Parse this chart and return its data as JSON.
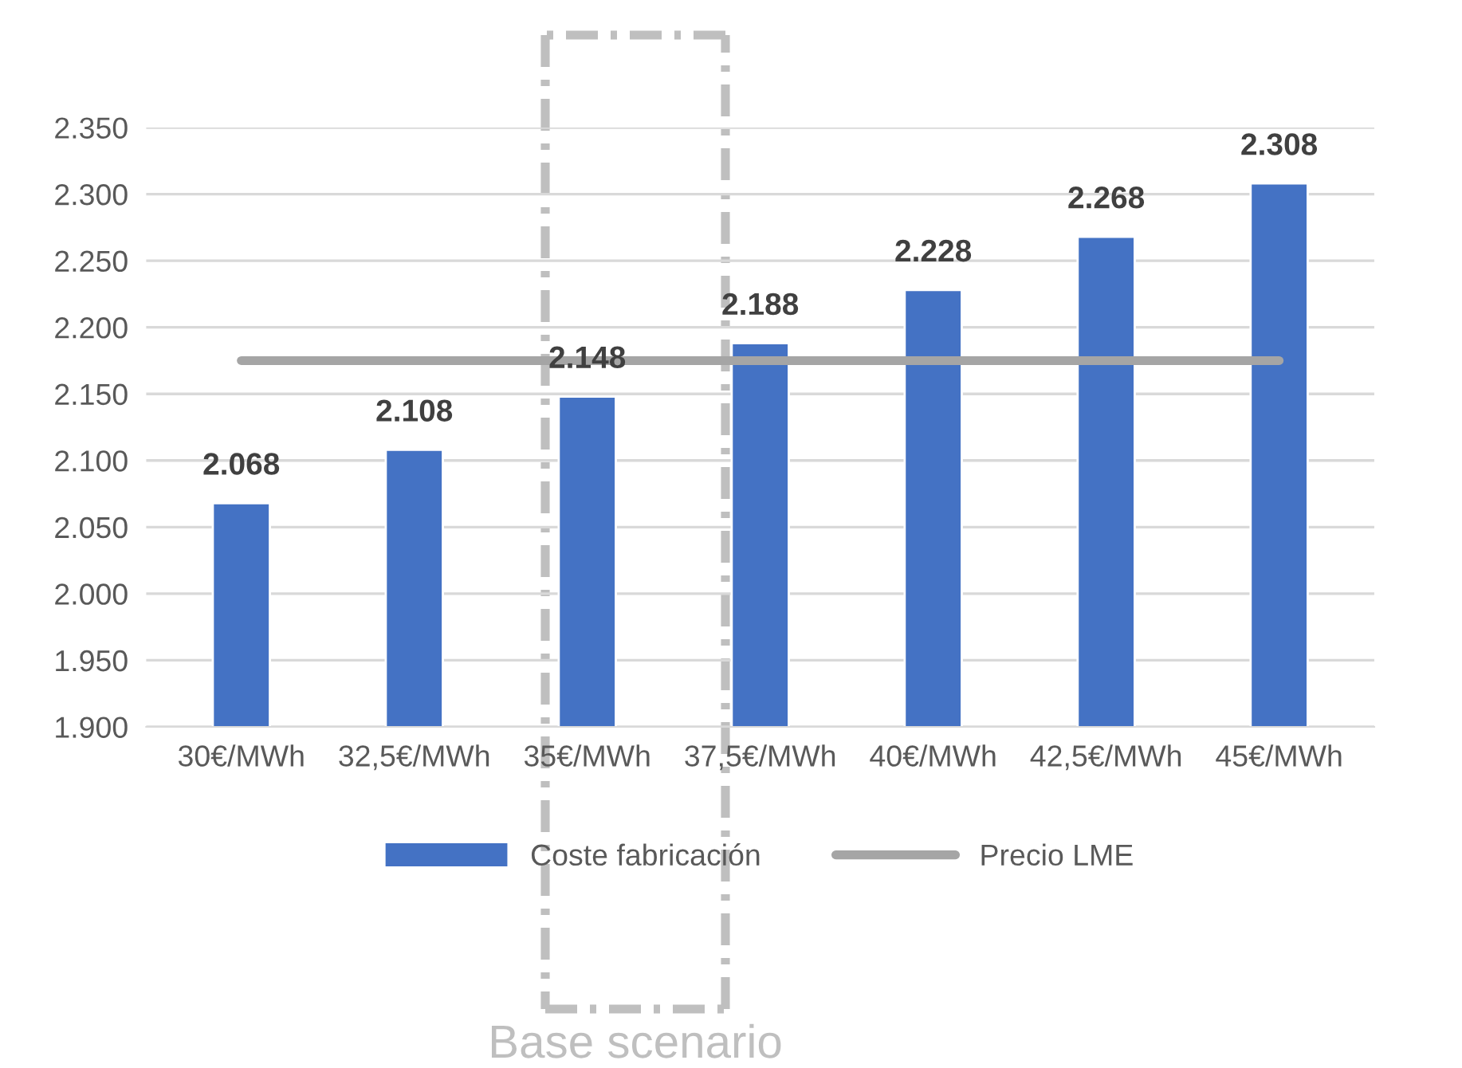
{
  "chart_data": {
    "type": "bar",
    "categories": [
      "30€/MWh",
      "32,5€/MWh",
      "35€/MWh",
      "37,5€/MWh",
      "40€/MWh",
      "42,5€/MWh",
      "45€/MWh"
    ],
    "series": [
      {
        "name": "Coste fabricación",
        "color": "#4472c4",
        "values": [
          2068,
          2108,
          2148,
          2188,
          2228,
          2268,
          2308
        ],
        "value_labels": [
          "2.068",
          "2.108",
          "2.148",
          "2.188",
          "2.228",
          "2.268",
          "2.308"
        ]
      },
      {
        "name": "Precio LME",
        "type": "line",
        "color": "#a5a5a5",
        "values": [
          2175,
          2175,
          2175,
          2175,
          2175,
          2175,
          2175
        ]
      }
    ],
    "ylim": [
      1900,
      2350
    ],
    "yticks": [
      {
        "value": 1900,
        "label": "1.900"
      },
      {
        "value": 1950,
        "label": "1.950"
      },
      {
        "value": 2000,
        "label": "2.000"
      },
      {
        "value": 2050,
        "label": "2.050"
      },
      {
        "value": 2100,
        "label": "2.100"
      },
      {
        "value": 2150,
        "label": "2.150"
      },
      {
        "value": 2200,
        "label": "2.200"
      },
      {
        "value": 2250,
        "label": "2.250"
      },
      {
        "value": 2300,
        "label": "2.300"
      },
      {
        "value": 2350,
        "label": "2.350"
      }
    ],
    "grid": "y",
    "legend": "bottom",
    "marker": "none",
    "annotations": [
      "Base scenario"
    ]
  }
}
